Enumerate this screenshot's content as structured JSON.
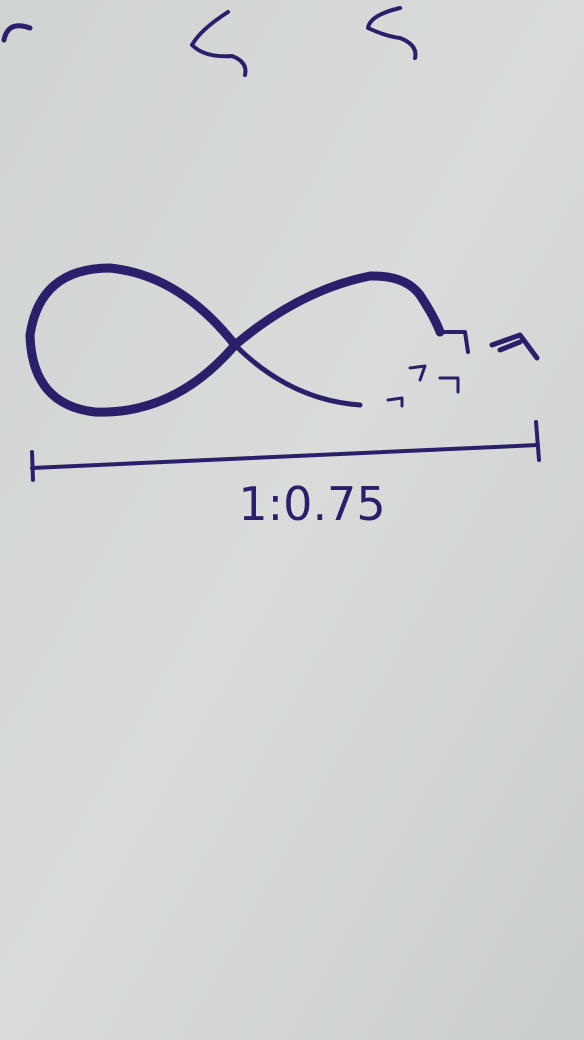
{
  "label": "1:0.75"
}
